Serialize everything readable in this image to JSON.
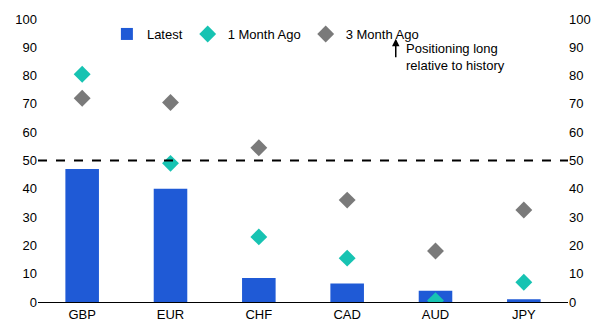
{
  "chart_data": {
    "type": "bar",
    "categories": [
      "GBP",
      "EUR",
      "CHF",
      "CAD",
      "AUD",
      "JPY"
    ],
    "series": [
      {
        "name": "Latest",
        "type": "bar",
        "color": "#1f5ad6",
        "values": [
          47,
          40,
          8.5,
          6.5,
          4,
          1
        ]
      },
      {
        "name": "1 Month Ago",
        "type": "scatter",
        "marker": "diamond",
        "color": "#17c3b2",
        "values": [
          80.5,
          49,
          23,
          15.5,
          0.5,
          7
        ]
      },
      {
        "name": "3 Month Ago",
        "type": "scatter",
        "marker": "diamond",
        "color": "#7a7a7a",
        "values": [
          72,
          70.5,
          54.5,
          36,
          18,
          32.5
        ]
      }
    ],
    "ylim": [
      0,
      100
    ],
    "yticks": [
      0,
      10,
      20,
      30,
      40,
      50,
      60,
      70,
      80,
      90,
      100
    ],
    "y2lim": [
      0,
      100
    ],
    "y2ticks": [
      0,
      10,
      20,
      30,
      40,
      50,
      60,
      70,
      80,
      90,
      100
    ],
    "reference_line": {
      "value": 50,
      "line_style": "dash",
      "color": "#000000"
    },
    "annotation_lines": [
      "Positioning long",
      "relative to history"
    ],
    "grid": false,
    "legend": "top"
  }
}
